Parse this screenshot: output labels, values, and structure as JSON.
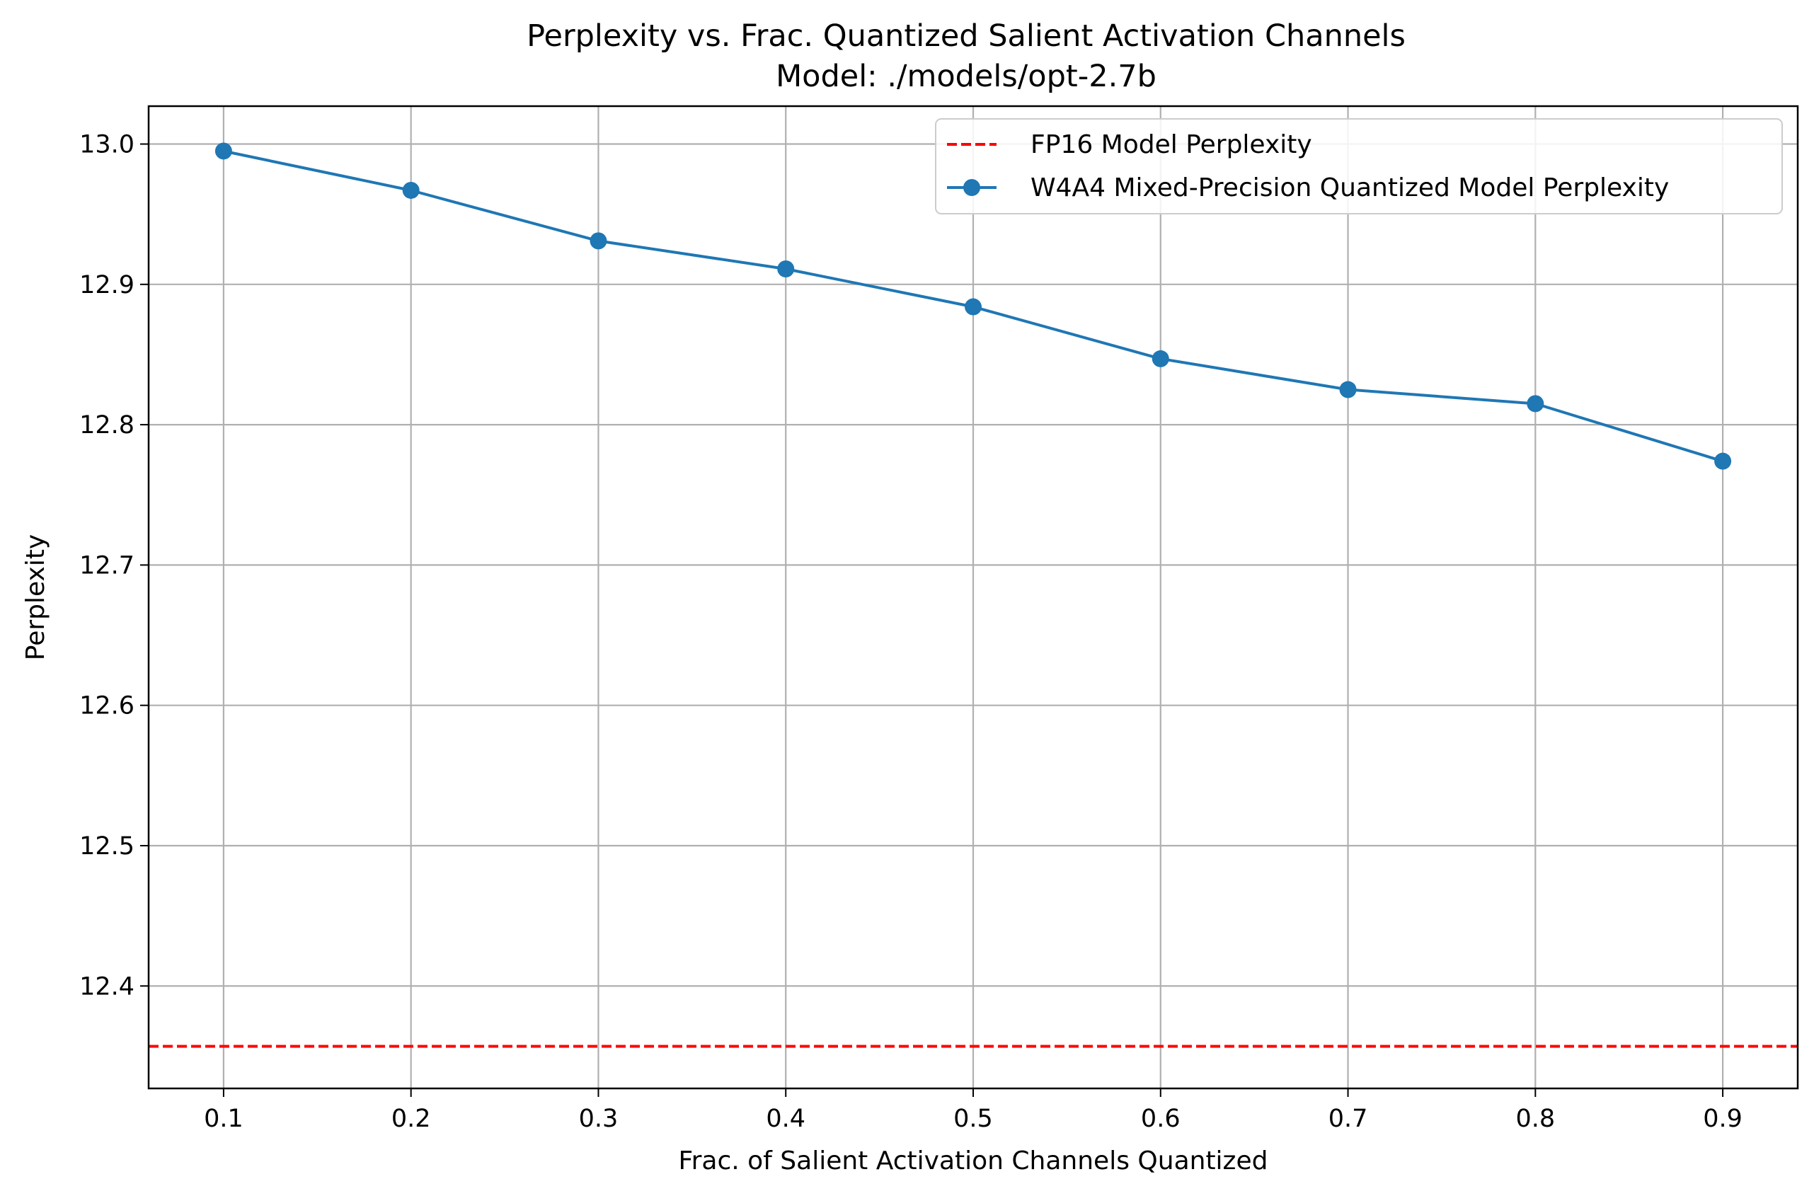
{
  "chart_data": {
    "type": "line",
    "title": "Perplexity vs. Frac. Quantized Salient Activation Channels",
    "subtitle": "Model: ./models/opt-2.7b",
    "xlabel": "Frac. of Salient Activation Channels Quantized",
    "ylabel": "Perplexity",
    "x_ticks": [
      "0.1",
      "0.2",
      "0.3",
      "0.4",
      "0.5",
      "0.6",
      "0.7",
      "0.8",
      "0.9"
    ],
    "y_ticks": [
      "12.4",
      "12.5",
      "12.6",
      "12.7",
      "12.8",
      "12.9",
      "13.0"
    ],
    "xlim": [
      0.06,
      0.94
    ],
    "ylim": [
      12.327,
      13.027
    ],
    "grid": true,
    "legend_position": "upper right",
    "series": [
      {
        "name": "FP16 Model Perplexity",
        "style": "dashed",
        "color": "#ff0000",
        "y": 12.357
      },
      {
        "name": "W4A4 Mixed-Precision Quantized Model Perplexity",
        "style": "line-marker",
        "color": "#1f77b4",
        "x": [
          0.1,
          0.2,
          0.3,
          0.4,
          0.5,
          0.6,
          0.7,
          0.8,
          0.9
        ],
        "values": [
          12.995,
          12.967,
          12.931,
          12.911,
          12.884,
          12.847,
          12.825,
          12.815,
          12.774
        ]
      }
    ]
  }
}
